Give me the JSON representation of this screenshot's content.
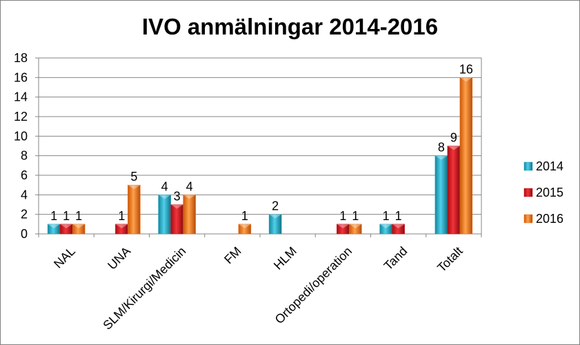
{
  "chart_data": {
    "type": "bar",
    "title": "IVO anmälningar 2014-2016",
    "xlabel": "",
    "ylabel": "",
    "ylim": [
      0,
      18
    ],
    "yticks": [
      0,
      2,
      4,
      6,
      8,
      10,
      12,
      14,
      16,
      18
    ],
    "grid": true,
    "legend_position": "right",
    "categories": [
      "NAL",
      "UNA",
      "SLM/Kirurgi/Medicin",
      "FM",
      "HLM",
      "Ortopedi/operation",
      "Tand",
      "Totalt"
    ],
    "series": [
      {
        "name": "2014",
        "color": "#1fa8c4",
        "values": [
          1,
          null,
          4,
          null,
          2,
          null,
          1,
          8
        ]
      },
      {
        "name": "2015",
        "color": "#d4141c",
        "values": [
          1,
          1,
          3,
          null,
          null,
          1,
          1,
          9
        ]
      },
      {
        "name": "2016",
        "color": "#f07012",
        "values": [
          1,
          5,
          4,
          1,
          null,
          1,
          null,
          16
        ]
      }
    ]
  }
}
